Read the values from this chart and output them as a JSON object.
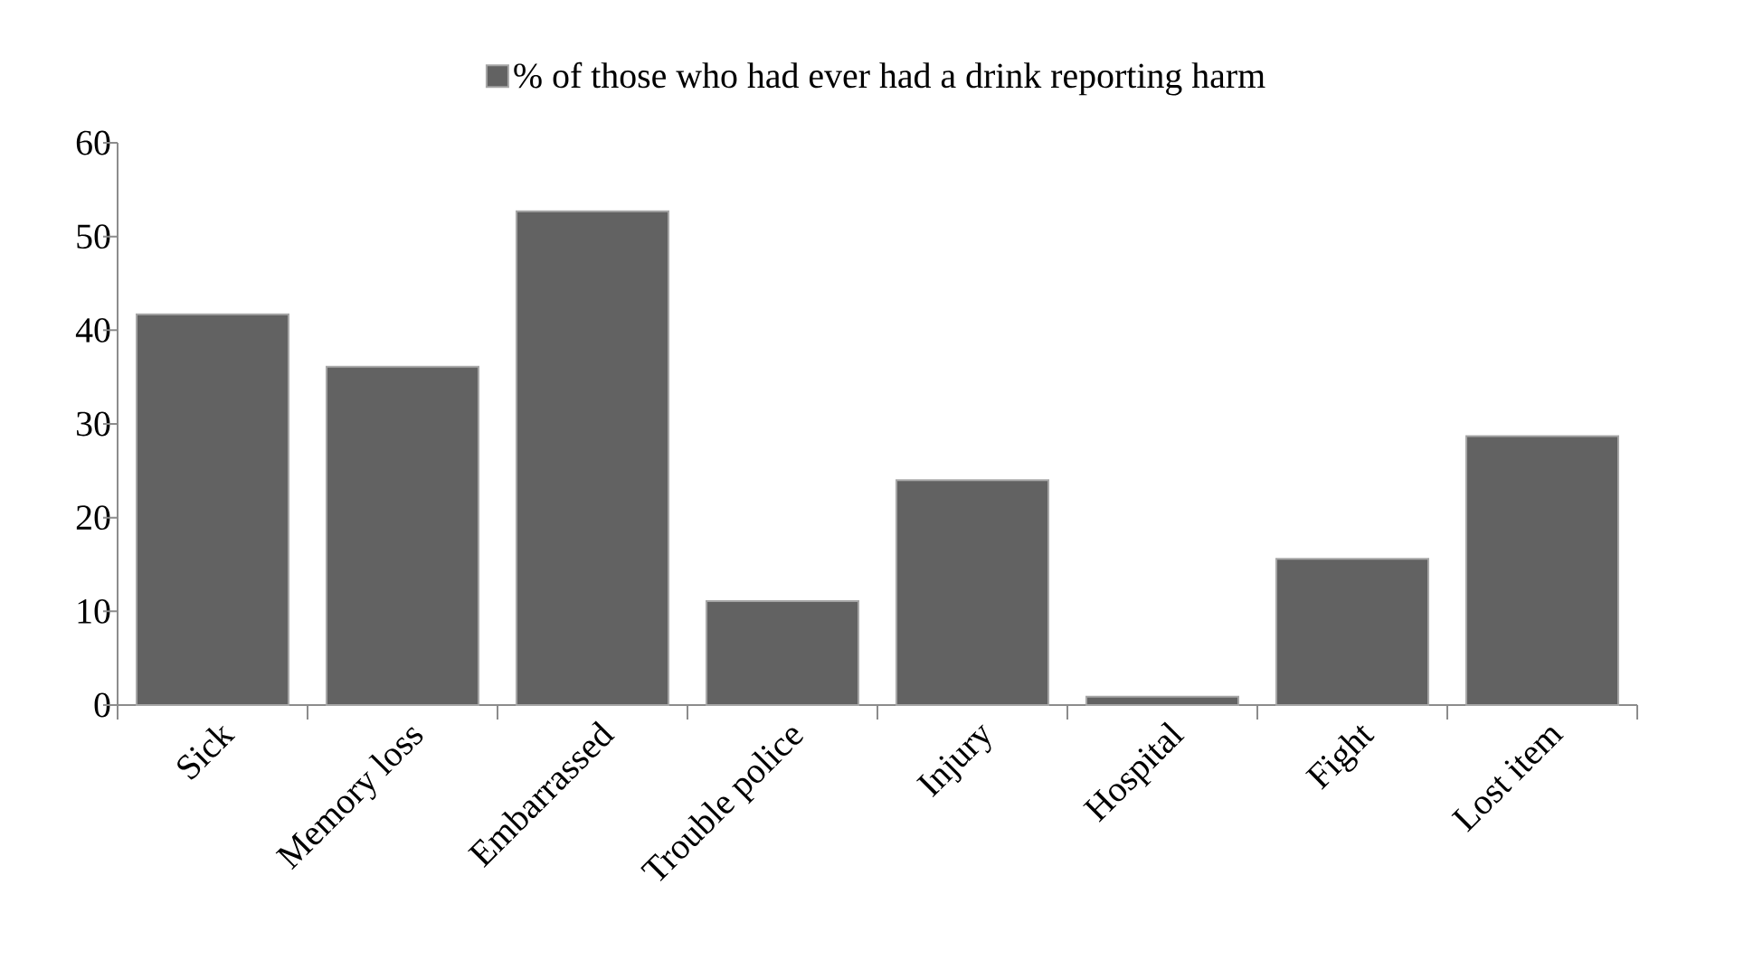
{
  "chart_data": {
    "type": "bar",
    "categories": [
      "Sick",
      "Memory loss",
      "Embarrassed",
      "Trouble police",
      "Injury",
      "Hospital",
      "Fight",
      "Lost item"
    ],
    "series": [
      {
        "name": "% of those who had ever had a drink reporting harm",
        "color": "#626262",
        "values": [
          41.7,
          36.1,
          52.7,
          11.1,
          24.0,
          0.9,
          15.6,
          28.7
        ]
      }
    ],
    "ylim": [
      0,
      60
    ],
    "yticks": [
      0,
      10,
      20,
      30,
      40,
      50,
      60
    ],
    "grid": false,
    "legend": "top"
  }
}
